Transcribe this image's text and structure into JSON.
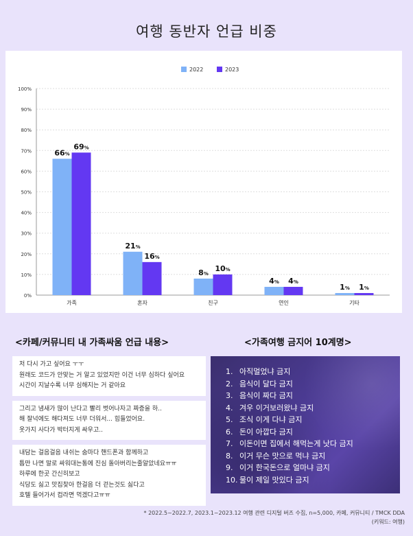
{
  "title": "여행 동반자 언급 비중",
  "chart_data": {
    "type": "bar",
    "categories": [
      "가족",
      "혼자",
      "친구",
      "연인",
      "기타"
    ],
    "series": [
      {
        "name": "2022",
        "values": [
          66,
          21,
          8,
          4,
          1
        ],
        "color": "#7fb2f7"
      },
      {
        "name": "2023",
        "values": [
          69,
          16,
          10,
          4,
          1
        ],
        "color": "#6338f2"
      }
    ],
    "data_labels": [
      [
        "66",
        "21",
        "8",
        "4",
        "1"
      ],
      [
        "69",
        "16",
        "10",
        "4",
        "1"
      ]
    ],
    "label_unit": "%",
    "yticks": [
      "0%",
      "10%",
      "20%",
      "30%",
      "40%",
      "50%",
      "60%",
      "70%",
      "80%",
      "90%",
      "100%"
    ],
    "ylim": [
      0,
      100
    ],
    "legend_position": "top-center",
    "grid": true
  },
  "left_heading": "<카페/커뮤니티 내 가족싸움 언급 내용>",
  "right_heading": "<가족여행 금지어 10계명>",
  "comments": [
    [
      "저 다시 가고 싶어요 ㅜㅜ",
      "원래도 코드가 안맞는 거 알고 있었지만 이건 너무 심하다 싶어요",
      " 시간이 지날수록 너무 심해지는 거 같아요"
    ],
    [
      "그리고 냄새가 많이 난다고 빨리 벗어나자고 짜증을 하..",
      "해 잘넉에도 해다져도 너무 더워서...  힘들었어요.",
      "옷가지 사다가 박터지게 싸우고.."
    ],
    [
      "내담는 걸음걸음 내쉬는 숨마다 핸드폰과 함께하고",
      "틈만 나면 말로 싸워대는통에 진심 돌아버리는줄알았네요ㅠㅠ",
      "하루에 한곳 간신히보고",
      "식당도 싫고 맛집찾아 한걸음 더 걷는것도 싫다고",
      "호텔 들어가서 컵라면 먹겠다고ㅠㅠ"
    ]
  ],
  "ban_list": [
    {
      "num": "1.",
      "text": "아직멀었냐 금지"
    },
    {
      "num": "2.",
      "text": "음식이 달다 금지"
    },
    {
      "num": "3.",
      "text": "음식이 짜다 금지"
    },
    {
      "num": "4.",
      "text": "겨우 이거보러왔냐 금지"
    },
    {
      "num": "5.",
      "text": "조식 이게 다냐 금지"
    },
    {
      "num": "6.",
      "text": "돈이 아깝다 금지"
    },
    {
      "num": "7.",
      "text": "이돈이면 집에서 해먹는게 낫다 금지"
    },
    {
      "num": "8.",
      "text": "이거 무슨 맛으로 먹냐 금지"
    },
    {
      "num": "9.",
      "text": "이거 한국돈으로 얼마냐 금지"
    },
    {
      "num": "10.",
      "text": "물이 제일 맛있다 금지"
    }
  ],
  "footer": {
    "line1": "* 2022.5~2022.7, 2023.1~2023.12 여행 관련 디지털 버즈 수집, n=5,000, 카페, 커뮤니티 / TMCK DDA",
    "line2": "(키워드: 여행)"
  }
}
